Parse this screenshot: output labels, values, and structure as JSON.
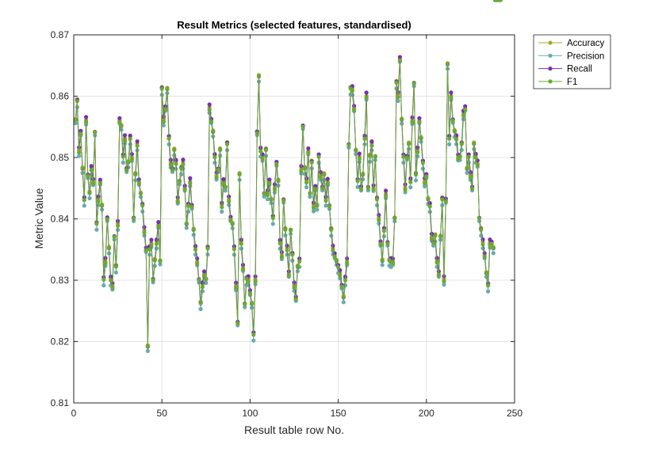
{
  "chart_data": {
    "type": "line",
    "title": "Result Metrics (selected features, standardised)",
    "xlabel": "Result table row No.",
    "ylabel": "Metric Value",
    "xlim": [
      0,
      250
    ],
    "ylim": [
      0.81,
      0.87
    ],
    "xticks": [
      0,
      50,
      100,
      150,
      200,
      250
    ],
    "yticks": [
      0.81,
      0.82,
      0.83,
      0.84,
      0.85,
      0.86,
      0.87
    ],
    "xtick_labels": [
      "0",
      "50",
      "100",
      "150",
      "200",
      "250"
    ],
    "ytick_labels": [
      "0.81",
      "0.82",
      "0.83",
      "0.84",
      "0.85",
      "0.86",
      "0.87"
    ],
    "grid": true,
    "legend_position": "outside-top-right",
    "series": [
      {
        "name": "Accuracy",
        "color": "#a7a82a",
        "marker": "circle"
      },
      {
        "name": "Precision",
        "color": "#69aab0",
        "marker": "circle"
      },
      {
        "name": "Recall",
        "color": "#7a2fb0",
        "marker": "circle"
      },
      {
        "name": "F1",
        "color": "#6aaa32",
        "marker": "circle"
      }
    ],
    "x": [
      1,
      2,
      3,
      4,
      5,
      6,
      7,
      8,
      9,
      10,
      11,
      12,
      13,
      14,
      15,
      16,
      17,
      18,
      19,
      20,
      21,
      22,
      23,
      24,
      25,
      26,
      27,
      28,
      29,
      30,
      31,
      32,
      33,
      34,
      35,
      36,
      37,
      38,
      39,
      40,
      41,
      42,
      43,
      44,
      45,
      46,
      47,
      48,
      49,
      50,
      51,
      52,
      53,
      54,
      55,
      56,
      57,
      58,
      59,
      60,
      61,
      62,
      63,
      64,
      65,
      66,
      67,
      68,
      69,
      70,
      71,
      72,
      73,
      74,
      75,
      76,
      77,
      78,
      79,
      80,
      81,
      82,
      83,
      84,
      85,
      86,
      87,
      88,
      89,
      90,
      91,
      92,
      93,
      94,
      95,
      96,
      97,
      98,
      99,
      100,
      101,
      102,
      103,
      104,
      105,
      106,
      107,
      108,
      109,
      110,
      111,
      112,
      113,
      114,
      115,
      116,
      117,
      118,
      119,
      120,
      121,
      122,
      123,
      124,
      125,
      126,
      127,
      128,
      129,
      130,
      131,
      132,
      133,
      134,
      135,
      136,
      137,
      138,
      139,
      140,
      141,
      142,
      143,
      144,
      145,
      146,
      147,
      148,
      149,
      150,
      151,
      152,
      153,
      154,
      155,
      156,
      157,
      158,
      159,
      160,
      161,
      162,
      163,
      164,
      165,
      166,
      167,
      168,
      169,
      170,
      171,
      172,
      173,
      174,
      175,
      176,
      177,
      178,
      179,
      180,
      181,
      182,
      183,
      184,
      185,
      186,
      187,
      188,
      189,
      190,
      191,
      192,
      193,
      194,
      195,
      196,
      197,
      198,
      199,
      200,
      201,
      202,
      203,
      204,
      205,
      206,
      207,
      208,
      209,
      210,
      211,
      212,
      213,
      214,
      215,
      216,
      217,
      218,
      219,
      220,
      221,
      222,
      223,
      224,
      225,
      226,
      227,
      228,
      229,
      230,
      231,
      232,
      233,
      234,
      235,
      236,
      237,
      238,
      239,
      240,
      241,
      242
    ],
    "base_values": [
      0.856,
      0.859,
      0.851,
      0.854,
      0.848,
      0.843,
      0.856,
      0.847,
      0.844,
      0.848,
      0.846,
      0.854,
      0.839,
      0.843,
      0.846,
      0.842,
      0.83,
      0.833,
      0.84,
      0.835,
      0.83,
      0.829,
      0.837,
      0.832,
      0.839,
      0.856,
      0.855,
      0.85,
      0.853,
      0.848,
      0.849,
      0.853,
      0.85,
      0.84,
      0.847,
      0.852,
      0.846,
      0.844,
      0.842,
      0.838,
      0.835,
      0.819,
      0.835,
      0.836,
      0.83,
      0.833,
      0.836,
      0.839,
      0.833,
      0.861,
      0.856,
      0.858,
      0.861,
      0.853,
      0.849,
      0.848,
      0.851,
      0.849,
      0.843,
      0.846,
      0.848,
      0.849,
      0.845,
      0.839,
      0.842,
      0.846,
      0.842,
      0.838,
      0.835,
      0.833,
      0.83,
      0.826,
      0.829,
      0.831,
      0.83,
      0.835,
      0.858,
      0.856,
      0.854,
      0.85,
      0.847,
      0.848,
      0.851,
      0.842,
      0.846,
      0.845,
      0.852,
      0.843,
      0.84,
      0.839,
      0.835,
      0.829,
      0.823,
      0.847,
      0.836,
      0.832,
      0.826,
      0.83,
      0.83,
      0.828,
      0.826,
      0.821,
      0.83,
      0.854,
      0.863,
      0.851,
      0.85,
      0.844,
      0.851,
      0.844,
      0.846,
      0.843,
      0.84,
      0.845,
      0.849,
      0.846,
      0.836,
      0.834,
      0.843,
      0.838,
      0.835,
      0.831,
      0.838,
      0.834,
      0.829,
      0.827,
      0.832,
      0.833,
      0.848,
      0.855,
      0.848,
      0.846,
      0.851,
      0.844,
      0.849,
      0.842,
      0.845,
      0.842,
      0.85,
      0.847,
      0.845,
      0.847,
      0.843,
      0.846,
      0.842,
      0.838,
      0.835,
      0.834,
      0.833,
      0.832,
      0.831,
      0.829,
      0.827,
      0.83,
      0.833,
      0.852,
      0.861,
      0.861,
      0.858,
      0.851,
      0.846,
      0.85,
      0.845,
      0.847,
      0.853,
      0.86,
      0.845,
      0.85,
      0.852,
      0.845,
      0.85,
      0.843,
      0.84,
      0.836,
      0.833,
      0.838,
      0.844,
      0.836,
      0.833,
      0.833,
      0.833,
      0.84,
      0.862,
      0.86,
      0.866,
      0.856,
      0.85,
      0.845,
      0.85,
      0.852,
      0.846,
      0.856,
      0.862,
      0.847,
      0.851,
      0.856,
      0.853,
      0.849,
      0.846,
      0.847,
      0.843,
      0.842,
      0.837,
      0.836,
      0.837,
      0.833,
      0.831,
      0.837,
      0.843,
      0.83,
      0.843,
      0.865,
      0.853,
      0.86,
      0.856,
      0.854,
      0.853,
      0.85,
      0.85,
      0.852,
      0.857,
      0.858,
      0.848,
      0.85,
      0.847,
      0.845,
      0.852,
      0.85,
      0.849,
      0.84,
      0.838,
      0.836,
      0.834,
      0.831,
      0.829,
      0.836,
      0.836,
      0.835
    ]
  }
}
